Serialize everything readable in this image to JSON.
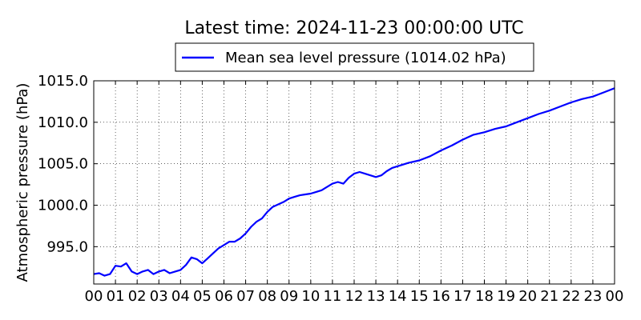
{
  "chart_data": {
    "type": "line",
    "title": "Latest time: 2024-11-23 00:00:00 UTC",
    "ylabel": "Atmospheric pressure (hPa)",
    "xlabel": "",
    "legend": {
      "placement": "top-center",
      "label": "Mean sea level pressure (1014.02 hPa)"
    },
    "grid": true,
    "xlim": [
      0,
      24
    ],
    "ylim": [
      990.5,
      1015.0
    ],
    "x_ticks": [
      0,
      1,
      2,
      3,
      4,
      5,
      6,
      7,
      8,
      9,
      10,
      11,
      12,
      13,
      14,
      15,
      16,
      17,
      18,
      19,
      20,
      21,
      22,
      23,
      24
    ],
    "x_tick_labels": [
      "00",
      "01",
      "02",
      "03",
      "04",
      "05",
      "06",
      "07",
      "08",
      "09",
      "10",
      "11",
      "12",
      "13",
      "14",
      "15",
      "16",
      "17",
      "18",
      "19",
      "20",
      "21",
      "22",
      "23",
      "00"
    ],
    "y_ticks": [
      995,
      1000,
      1005,
      1010,
      1015
    ],
    "y_tick_labels": [
      "995.0",
      "1000.0",
      "1005.0",
      "1010.0",
      "1015.0"
    ],
    "series": [
      {
        "name": "Mean sea level pressure",
        "color": "#0000ff",
        "x": [
          0,
          0.25,
          0.5,
          0.75,
          1,
          1.25,
          1.5,
          1.75,
          2,
          2.25,
          2.5,
          2.75,
          3,
          3.25,
          3.5,
          3.75,
          4,
          4.25,
          4.5,
          4.75,
          5,
          5.25,
          5.5,
          5.75,
          6,
          6.25,
          6.5,
          6.75,
          7,
          7.25,
          7.5,
          7.75,
          8,
          8.25,
          8.5,
          8.75,
          9,
          9.25,
          9.5,
          9.75,
          10,
          10.25,
          10.5,
          10.75,
          11,
          11.25,
          11.5,
          11.75,
          12,
          12.25,
          12.5,
          12.75,
          13,
          13.25,
          13.5,
          13.75,
          14,
          14.5,
          15,
          15.5,
          16,
          16.5,
          17,
          17.5,
          18,
          18.5,
          19,
          19.5,
          20,
          20.5,
          21,
          21.5,
          22,
          22.5,
          23,
          23.5,
          24
        ],
        "y": [
          991.7,
          991.8,
          991.5,
          991.7,
          992.7,
          992.6,
          993.0,
          992.0,
          991.7,
          992.0,
          992.2,
          991.7,
          992.0,
          992.2,
          991.8,
          992.0,
          992.2,
          992.8,
          993.7,
          993.5,
          993.0,
          993.6,
          994.2,
          994.8,
          995.2,
          995.6,
          995.6,
          996.0,
          996.6,
          997.4,
          998.0,
          998.4,
          999.2,
          999.8,
          1000.1,
          1000.4,
          1000.8,
          1001.0,
          1001.2,
          1001.3,
          1001.4,
          1001.6,
          1001.8,
          1002.2,
          1002.6,
          1002.8,
          1002.6,
          1003.3,
          1003.8,
          1004.0,
          1003.8,
          1003.6,
          1003.4,
          1003.6,
          1004.1,
          1004.5,
          1004.7,
          1005.1,
          1005.4,
          1005.9,
          1006.6,
          1007.2,
          1007.9,
          1008.5,
          1008.8,
          1009.2,
          1009.5,
          1010.0,
          1010.5,
          1011.0,
          1011.4,
          1011.9,
          1012.4,
          1012.8,
          1013.1,
          1013.6,
          1014.1
        ]
      }
    ]
  }
}
